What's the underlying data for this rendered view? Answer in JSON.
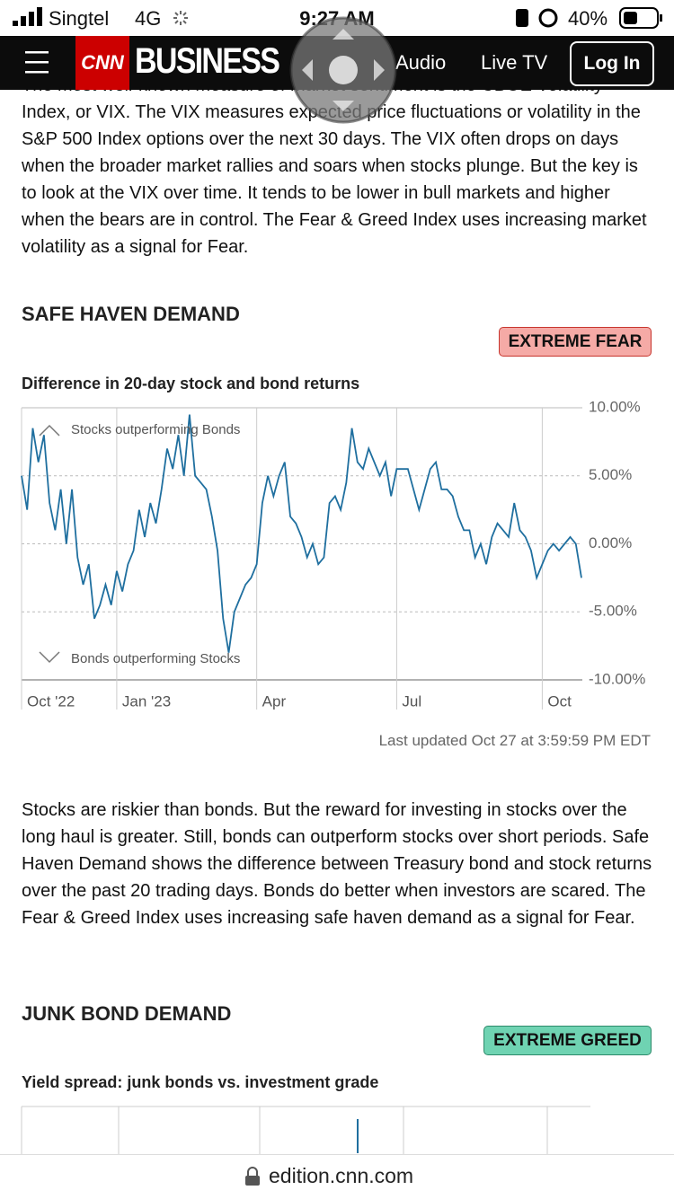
{
  "status_bar": {
    "carrier": "Singtel",
    "network": "4G",
    "time": "9:27 AM",
    "battery": "40%"
  },
  "nav": {
    "logo_cnn": "CNN",
    "logo_business": "BUSINESS",
    "links": [
      "Audio",
      "Live TV"
    ],
    "login": "Log In"
  },
  "intro_paragraph": "The most well-known measure of market sentiment is the CBOE Volatility Index, or VIX. The VIX measures expected price fluctuations or volatility in the S&P 500 Index options over the next 30 days. The VIX often drops on days when the broader market rallies and soars when stocks plunge. But the key is to look at the VIX over time. It tends to be lower in bull markets and higher when the bears are in control. The Fear & Greed Index uses increasing market volatility as a signal for Fear.",
  "safe_haven": {
    "heading": "SAFE HAVEN DEMAND",
    "rating": "EXTREME FEAR",
    "updated": "Last updated Oct 27 at 3:59:59 PM EDT",
    "paragraph": "Stocks are riskier than bonds. But the reward for investing in stocks over the long haul is greater. Still, bonds can outperform stocks over short periods. Safe Haven Demand shows the difference between Treasury bond and stock returns over the past 20 trading days. Bonds do better when investors are scared. The Fear & Greed Index uses increasing safe haven demand as a signal for Fear."
  },
  "chart_data": {
    "type": "line",
    "title": "Difference in 20-day stock and bond returns",
    "annotations": [
      "Stocks outperforming Bonds",
      "Bonds outperforming Stocks"
    ],
    "color": "#1f6f9f",
    "values": [
      5.0,
      2.5,
      8.5,
      6.0,
      8.0,
      3.0,
      1.0,
      4.0,
      0.0,
      4.0,
      -1.0,
      -3.0,
      -1.5,
      -5.5,
      -4.5,
      -3.0,
      -4.5,
      -2.0,
      -3.5,
      -1.5,
      -0.5,
      2.5,
      0.5,
      3.0,
      1.5,
      4.0,
      7.0,
      5.5,
      8.0,
      5.0,
      9.5,
      5.0,
      4.5,
      4.0,
      2.0,
      -0.5,
      -5.5,
      -8.0,
      -5.0,
      -4.0,
      -3.0,
      -2.5,
      -1.5,
      3.0,
      5.0,
      3.5,
      5.0,
      6.0,
      2.0,
      1.5,
      0.5,
      -1.0,
      0.0,
      -1.5,
      -1.0,
      3.0,
      3.5,
      2.5,
      4.5,
      8.5,
      6.0,
      5.5,
      7.0,
      6.0,
      5.0,
      6.0,
      3.5,
      5.5,
      5.5,
      5.5,
      4.0,
      2.5,
      4.0,
      5.5,
      6.0,
      4.0,
      4.0,
      3.5,
      2.0,
      1.0,
      1.0,
      -1.0,
      0.0,
      -1.5,
      0.5,
      1.5,
      1.0,
      0.5,
      3.0,
      1.0,
      0.5,
      -0.5,
      -2.5,
      -1.5,
      -0.5,
      0.0,
      -0.5,
      0.0,
      0.5,
      0.0,
      -2.5
    ],
    "xlim": [
      0,
      100
    ],
    "xticks": [
      {
        "value": 0,
        "label": "Oct '22"
      },
      {
        "value": 17,
        "label": "Jan '23"
      },
      {
        "value": 42,
        "label": "Apr"
      },
      {
        "value": 67,
        "label": "Jul"
      },
      {
        "value": 93,
        "label": "Oct"
      }
    ],
    "ylim": [
      -10,
      10
    ],
    "yticks": [
      {
        "value": 10,
        "label": "10.00%"
      },
      {
        "value": 5,
        "label": "5.00%"
      },
      {
        "value": 0,
        "label": "0.00%"
      },
      {
        "value": -5,
        "label": "-5.00%"
      },
      {
        "value": -10,
        "label": "-10.00%"
      }
    ],
    "grid": true
  },
  "junk_bond": {
    "heading": "JUNK BOND DEMAND",
    "rating": "EXTREME GREED",
    "chart_title": "Yield spread: junk bonds vs. investment grade"
  },
  "url_bar": {
    "url": "edition.cnn.com"
  }
}
